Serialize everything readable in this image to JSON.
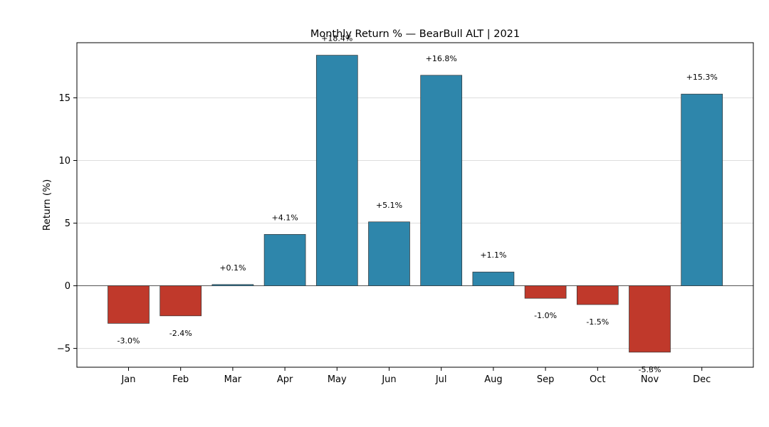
{
  "chart_data": {
    "type": "bar",
    "title": "Monthly Return % — BearBull ALT | 2021",
    "xlabel": "",
    "ylabel": "Return (%)",
    "ylim": [
      -6.5,
      19.4
    ],
    "yticks": [
      -5,
      0,
      5,
      10,
      15
    ],
    "ytick_labels": [
      "−5",
      "0",
      "5",
      "10",
      "15"
    ],
    "grid": "horizontal",
    "categories": [
      "Jan",
      "Feb",
      "Mar",
      "Apr",
      "May",
      "Jun",
      "Jul",
      "Aug",
      "Sep",
      "Oct",
      "Nov",
      "Dec"
    ],
    "values": [
      -3.0,
      -2.4,
      0.1,
      4.1,
      18.4,
      5.1,
      16.8,
      1.1,
      -1.0,
      -1.5,
      -5.3,
      15.3
    ],
    "data_labels": [
      "-3.0%",
      "-2.4%",
      "+0.1%",
      "+4.1%",
      "+18.4%",
      "+5.1%",
      "+16.8%",
      "+1.1%",
      "-1.0%",
      "-1.5%",
      "-5.3%",
      "+15.3%"
    ],
    "colors": {
      "positive": "#2e86ab",
      "negative": "#c0392b",
      "bar_edge": "#333333",
      "grid": "#dddddd",
      "zero_line": "#555555"
    }
  }
}
